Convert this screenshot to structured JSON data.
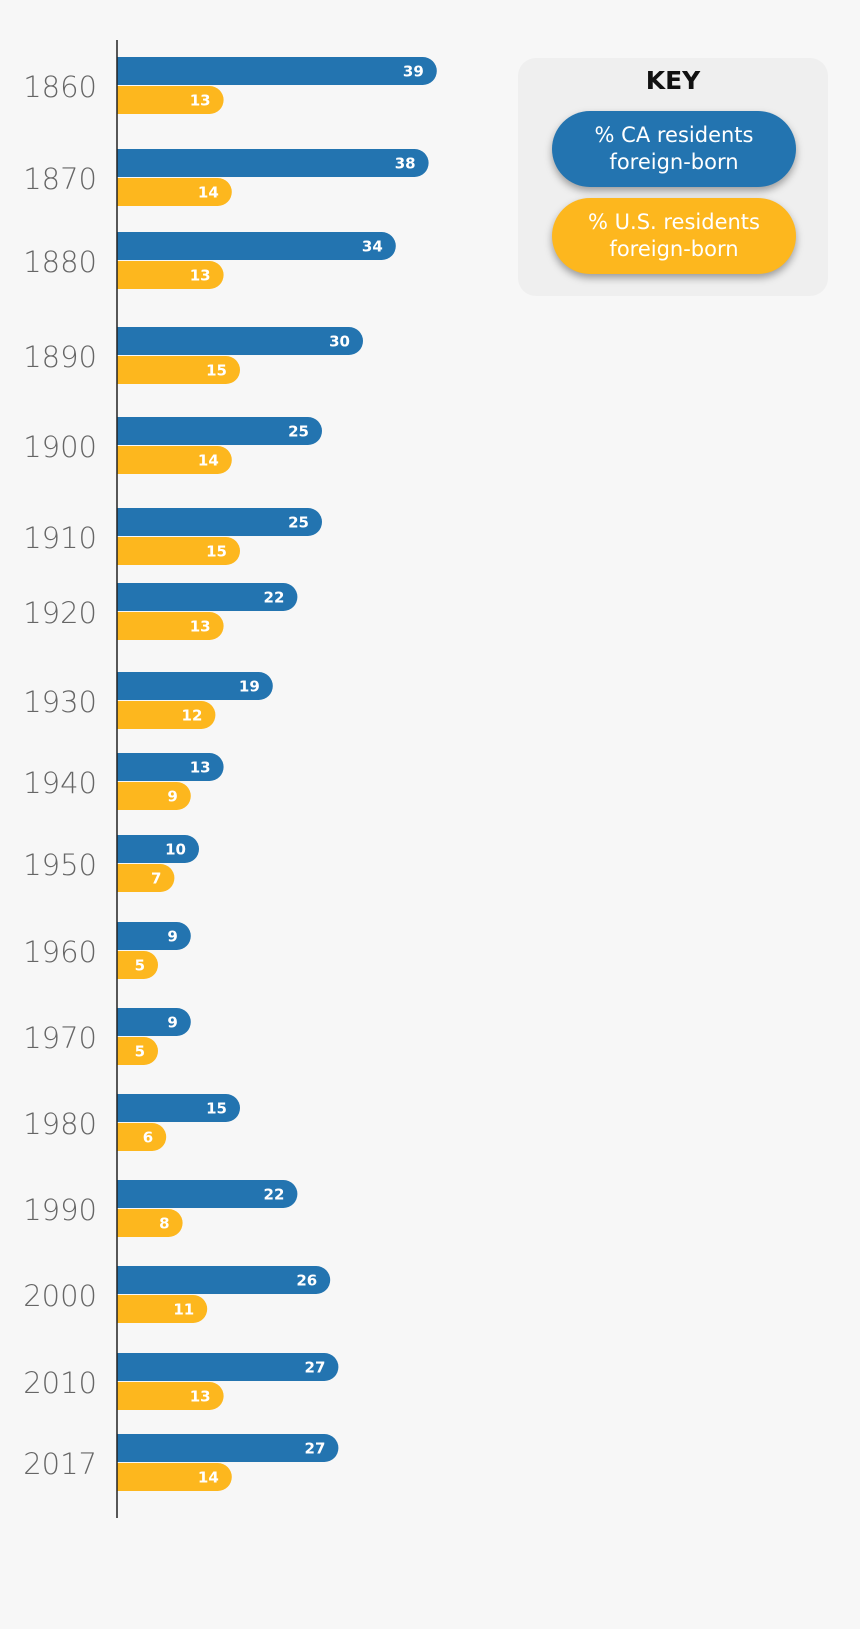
{
  "chart_data": {
    "type": "bar",
    "orientation": "horizontal",
    "categories": [
      "1860",
      "1870",
      "1880",
      "1890",
      "1900",
      "1910",
      "1920",
      "1930",
      "1940",
      "1950",
      "1960",
      "1970",
      "1980",
      "1990",
      "2000",
      "2010",
      "2017"
    ],
    "series": [
      {
        "name": "% CA residents foreign-born",
        "color": "#2374b0",
        "values": [
          39,
          38,
          34,
          30,
          25,
          25,
          22,
          19,
          13,
          10,
          9,
          9,
          15,
          22,
          26,
          27,
          27
        ]
      },
      {
        "name": "% U.S. residents foreign-born",
        "color": "#fdb71e",
        "values": [
          13,
          14,
          13,
          15,
          14,
          15,
          13,
          12,
          9,
          7,
          5,
          5,
          6,
          8,
          11,
          13,
          14
        ]
      }
    ],
    "title": "",
    "xlabel": "",
    "ylabel": "",
    "legend_position": "top-right",
    "grid": false
  },
  "key": {
    "title": "KEY",
    "ca_label": "% CA residents\nforeign-born",
    "us_label": "% U.S. residents\nforeign-born",
    "ca_color": "#2374b0",
    "us_color": "#fdb71e"
  }
}
